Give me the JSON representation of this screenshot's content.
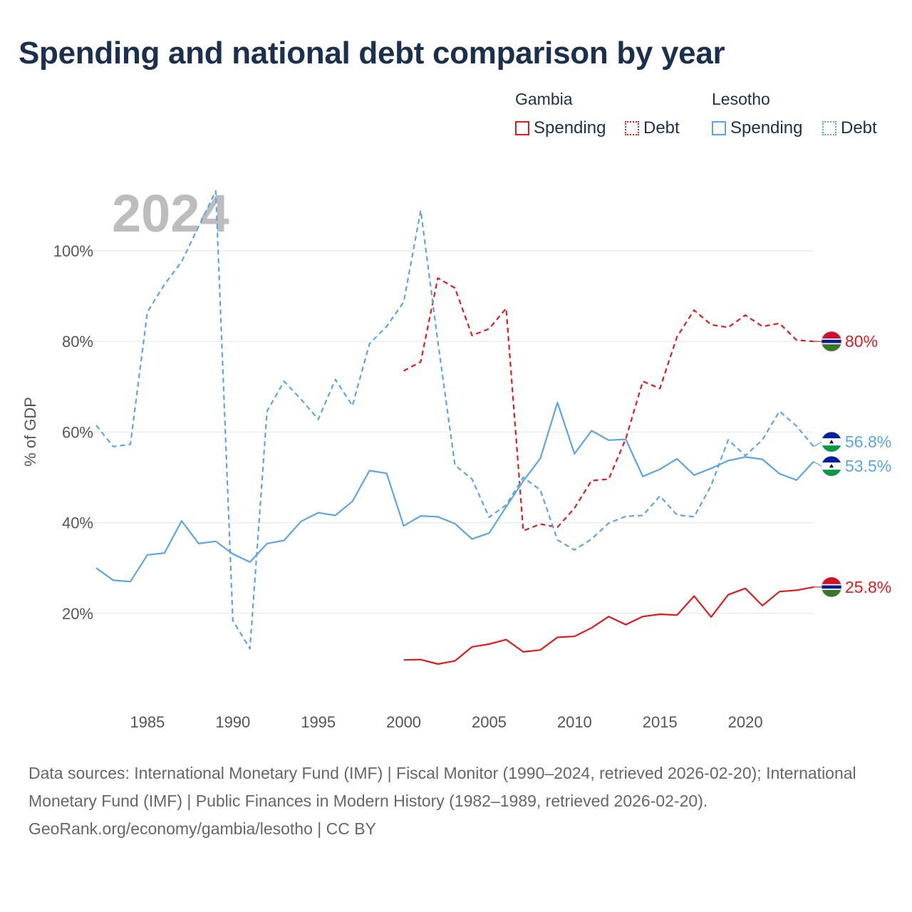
{
  "title": "Spending and national debt comparison by year",
  "legend": {
    "groups": [
      {
        "name": "Gambia",
        "items": [
          {
            "label": "Spending",
            "color": "#e41a1c",
            "style": "solid"
          },
          {
            "label": "Debt",
            "color": "#e41a1c",
            "style": "dotted"
          }
        ]
      },
      {
        "name": "Lesotho",
        "items": [
          {
            "label": "Spending",
            "color": "#5aa6e6",
            "style": "solid"
          },
          {
            "label": "Debt",
            "color": "#5aa6e6",
            "style": "dotted"
          }
        ]
      }
    ]
  },
  "footer": {
    "sources": "Data sources: International Monetary Fund (IMF) | Fiscal Monitor (1990–2024, retrieved 2026-02-20); International Monetary Fund (IMF) | Public Finances in Modern History (1982–1989, retrieved 2026-02-20).",
    "credit": "GeoRank.org/economy/gambia/lesotho | CC BY"
  },
  "chart_data": {
    "type": "line",
    "title": "Spending and national debt comparison by year",
    "year_label": "2024",
    "xlabel": "",
    "ylabel": "% of GDP",
    "xlim": [
      1982,
      2024
    ],
    "ylim": [
      0,
      113
    ],
    "x_ticks": [
      1985,
      1990,
      1995,
      2000,
      2005,
      2010,
      2015,
      2020
    ],
    "y_ticks": [
      20,
      40,
      60,
      80,
      100
    ],
    "y_tick_labels": [
      "20%",
      "40%",
      "60%",
      "80%",
      "100%"
    ],
    "grid": true,
    "series": [
      {
        "name": "Gambia Debt",
        "country": "Gambia",
        "measure": "Debt",
        "color": "#e41a1c",
        "dashed": true,
        "end_label": "80%",
        "flag": "gambia",
        "x": [
          2000,
          2001,
          2002,
          2003,
          2004,
          2005,
          2006,
          2007,
          2008,
          2009,
          2010,
          2011,
          2012,
          2013,
          2014,
          2015,
          2016,
          2017,
          2018,
          2019,
          2020,
          2021,
          2022,
          2023,
          2024
        ],
        "values": [
          73.5,
          75.5,
          94,
          91.8,
          81.3,
          82.8,
          87.3,
          38.2,
          39.7,
          39,
          43.2,
          49.3,
          49.6,
          58.5,
          71.2,
          69.6,
          81,
          86.9,
          83.7,
          83.1,
          85.8,
          83.3,
          84,
          80.3,
          80
        ]
      },
      {
        "name": "Gambia Spending",
        "country": "Gambia",
        "measure": "Spending",
        "color": "#e41a1c",
        "dashed": false,
        "end_label": "25.8%",
        "flag": "gambia",
        "x": [
          2000,
          2001,
          2002,
          2003,
          2004,
          2005,
          2006,
          2007,
          2008,
          2009,
          2010,
          2011,
          2012,
          2013,
          2014,
          2015,
          2016,
          2017,
          2018,
          2019,
          2020,
          2021,
          2022,
          2023,
          2024
        ],
        "values": [
          9.7,
          9.8,
          8.8,
          9.5,
          12.6,
          13.2,
          14.2,
          11.5,
          11.9,
          14.7,
          14.9,
          16.8,
          19.3,
          17.5,
          19.3,
          19.8,
          19.6,
          23.8,
          19.2,
          24.1,
          25.5,
          21.7,
          24.8,
          25.1,
          25.8
        ]
      },
      {
        "name": "Lesotho Debt",
        "country": "Lesotho",
        "measure": "Debt",
        "color": "#5aa6e6",
        "dashed": true,
        "end_label": "56.8%",
        "flag": "lesotho",
        "x": [
          1982,
          1983,
          1984,
          1985,
          1986,
          1987,
          1988,
          1989,
          1990,
          1991,
          1992,
          1993,
          1994,
          1995,
          1996,
          1997,
          1998,
          1999,
          2000,
          2001,
          2002,
          2003,
          2004,
          2005,
          2006,
          2007,
          2008,
          2009,
          2010,
          2011,
          2012,
          2013,
          2014,
          2015,
          2016,
          2017,
          2018,
          2019,
          2020,
          2021,
          2022,
          2023,
          2024
        ],
        "values": [
          61.5,
          56.8,
          57.3,
          86.5,
          92.6,
          97.6,
          105.4,
          113.2,
          18.4,
          12.2,
          64.6,
          71.2,
          67.2,
          62.8,
          71.6,
          65.8,
          79.5,
          83.3,
          88.7,
          108.9,
          80,
          52.7,
          49.6,
          41.2,
          43.9,
          50,
          47.2,
          36.2,
          34,
          36.4,
          39.9,
          41.4,
          41.6,
          45.9,
          41.7,
          41.3,
          48.2,
          58.3,
          54.8,
          58.3,
          64.6,
          61.3,
          56.8
        ]
      },
      {
        "name": "Lesotho Spending",
        "country": "Lesotho",
        "measure": "Spending",
        "color": "#5aa6e6",
        "dashed": false,
        "end_label": "53.5%",
        "flag": "lesotho",
        "x": [
          1982,
          1983,
          1984,
          1985,
          1986,
          1987,
          1988,
          1989,
          1990,
          1991,
          1992,
          1993,
          1994,
          1995,
          1996,
          1997,
          1998,
          1999,
          2000,
          2001,
          2002,
          2003,
          2004,
          2005,
          2006,
          2007,
          2008,
          2009,
          2010,
          2011,
          2012,
          2013,
          2014,
          2015,
          2016,
          2017,
          2018,
          2019,
          2020,
          2021,
          2022,
          2023,
          2024
        ],
        "values": [
          30,
          27.3,
          27,
          32.9,
          33.3,
          40.4,
          35.4,
          35.9,
          33.1,
          31.3,
          35.4,
          36.1,
          40.3,
          42.2,
          41.6,
          44.7,
          51.5,
          50.9,
          39.3,
          41.5,
          41.3,
          39.8,
          36.4,
          37.7,
          43.5,
          49.2,
          54.2,
          66.5,
          55.2,
          60.3,
          58.2,
          58.4,
          50.2,
          51.8,
          54.1,
          50.5,
          52,
          53.7,
          54.5,
          54,
          50.8,
          49.4,
          53.5
        ]
      }
    ]
  }
}
